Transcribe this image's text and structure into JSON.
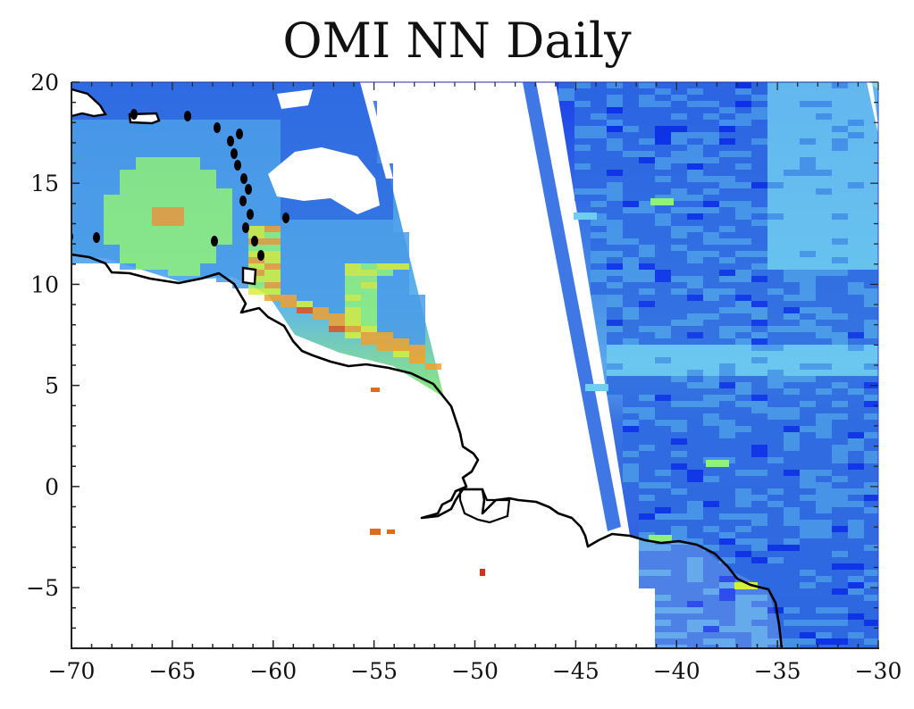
{
  "chart_data": {
    "type": "heatmap",
    "title": "OMI NN Daily",
    "xlabel": "",
    "ylabel": "",
    "xlim": [
      -70,
      -30
    ],
    "ylim": [
      -8,
      20
    ],
    "x_ticks": [
      -70,
      -65,
      -60,
      -55,
      -50,
      -45,
      -40,
      -35,
      -30
    ],
    "x_tick_labels": [
      "−70",
      "−65",
      "−60",
      "−55",
      "−50",
      "−45",
      "−40",
      "−35",
      "−30"
    ],
    "y_ticks": [
      20,
      15,
      10,
      5,
      0,
      -5
    ],
    "y_tick_labels": [
      "20",
      "15",
      "10",
      "5",
      "0",
      "−5"
    ],
    "minor_tick_step": 1,
    "grid": false,
    "legend": null,
    "colorbar": null,
    "colormap": [
      "#0a2ee6",
      "#2f6be0",
      "#4a9be8",
      "#6fcdf0",
      "#8ff07a",
      "#d6f03a",
      "#f0a030",
      "#e0501e",
      "#c81e14"
    ],
    "description": "Gridded satellite retrieval map over tropical Atlantic / northern South America coast; two orbital swaths with white no-data gap between approx lon -52 and -45; high values (green-orange-red) along coast near -60 to -52 lon, 5-10 lat (river plume); mostly low values (blue) elsewhere.",
    "regions": [
      {
        "name": "western swath",
        "lon_range": [
          -70,
          -51.5
        ],
        "lat_range": [
          4,
          20
        ],
        "dominant_value": "low-medium",
        "hotspots": [
          {
            "lon": -65.5,
            "lat": 13.7,
            "level": "orange"
          },
          {
            "lon": -61,
            "lat": 11.5,
            "level": "yellow-orange"
          },
          {
            "lon": -59.5,
            "lat": 8,
            "level": "orange"
          },
          {
            "lon": -53.5,
            "lat": 6,
            "level": "orange"
          },
          {
            "lon": -51.7,
            "lat": 5,
            "level": "red"
          },
          {
            "lon": -53,
            "lat": 8.5,
            "level": "green ring"
          }
        ]
      },
      {
        "name": "no-data gap",
        "lon_range": [
          -52.5,
          -47
        ],
        "lat_range": [
          -8,
          20
        ]
      },
      {
        "name": "narrow strip",
        "lon_range": [
          -47,
          -44.5
        ],
        "lat_range": [
          -2,
          20
        ],
        "dominant_value": "low"
      },
      {
        "name": "eastern swath",
        "lon_range": [
          -45,
          -30
        ],
        "lat_range": [
          -8,
          20
        ],
        "dominant_value": "low",
        "hotspots": [
          {
            "lon": -41,
            "lat": 14.4,
            "level": "green"
          },
          {
            "lon": -39.5,
            "lat": 1.2,
            "level": "green"
          },
          {
            "lon": -40.5,
            "lat": -2.5,
            "level": "green"
          },
          {
            "lon": -37,
            "lat": -4.8,
            "level": "yellow-green"
          }
        ]
      },
      {
        "name": "isolated pixels",
        "points": [
          {
            "lon": -55.1,
            "lat": 4.8,
            "level": "orange"
          },
          {
            "lon": -55.0,
            "lat": -2.2,
            "level": "orange"
          },
          {
            "lon": -54.3,
            "lat": -2.2,
            "level": "orange"
          },
          {
            "lon": -49.8,
            "lat": -4.3,
            "level": "red"
          }
        ]
      }
    ]
  }
}
